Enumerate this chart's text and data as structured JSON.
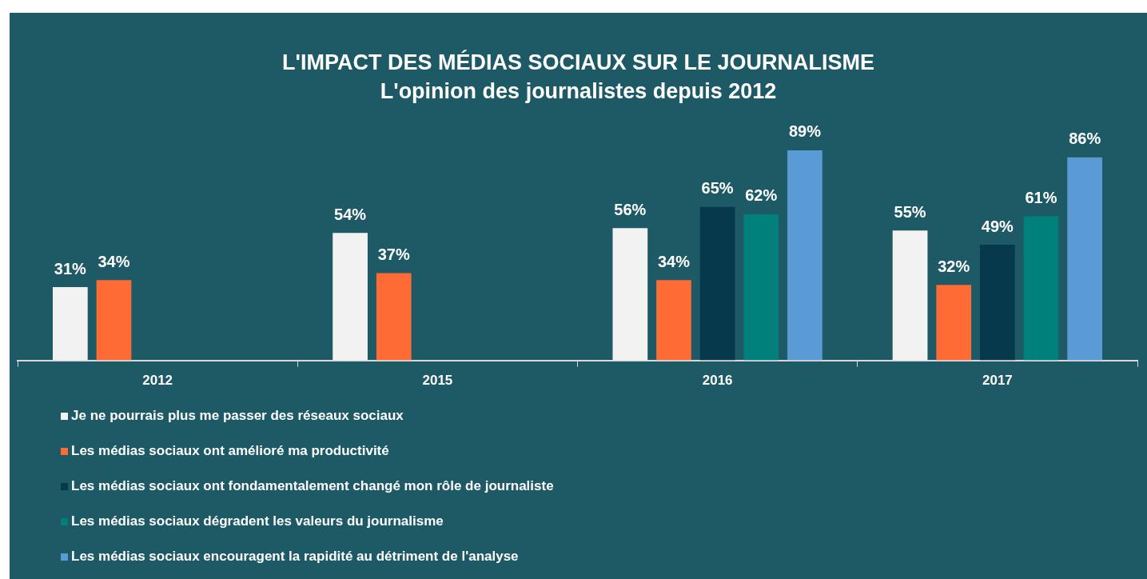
{
  "chart_data": {
    "type": "bar",
    "title": "L'IMPACT DES MÉDIAS SOCIAUX SUR LE JOURNALISME",
    "subtitle": "L'opinion des journalistes depuis 2012",
    "categories": [
      "2012",
      "2015",
      "2016",
      "2017"
    ],
    "series": [
      {
        "name": "Je ne pourrais plus me passer des réseaux sociaux",
        "color": "#f2f2f2",
        "values": [
          31,
          54,
          56,
          55
        ],
        "value_labels": [
          "31%",
          "54%",
          "56%",
          "55%"
        ]
      },
      {
        "name": "Les médias sociaux ont amélioré ma productivité",
        "color": "#ff6b35",
        "values": [
          34,
          37,
          34,
          32
        ],
        "value_labels": [
          "34%",
          "37%",
          "34%",
          "32%"
        ]
      },
      {
        "name": "Les médias sociaux ont fondamentalement changé mon rôle de journaliste",
        "color": "#06394b",
        "values": [
          null,
          null,
          65,
          49
        ],
        "value_labels": [
          null,
          null,
          "65%",
          "49%"
        ]
      },
      {
        "name": "Les médias sociaux dégradent les valeurs du journalisme",
        "color": "#00807a",
        "values": [
          null,
          null,
          62,
          61
        ],
        "value_labels": [
          null,
          null,
          "62%",
          "61%"
        ]
      },
      {
        "name": "Les médias sociaux encouragent la rapidité au détriment de l'analyse",
        "color": "#5b9bd5",
        "values": [
          null,
          null,
          89,
          86
        ],
        "value_labels": [
          null,
          null,
          "89%",
          "86%"
        ]
      }
    ],
    "tick_labels": "x",
    "grid": false,
    "legend": "bottom"
  }
}
